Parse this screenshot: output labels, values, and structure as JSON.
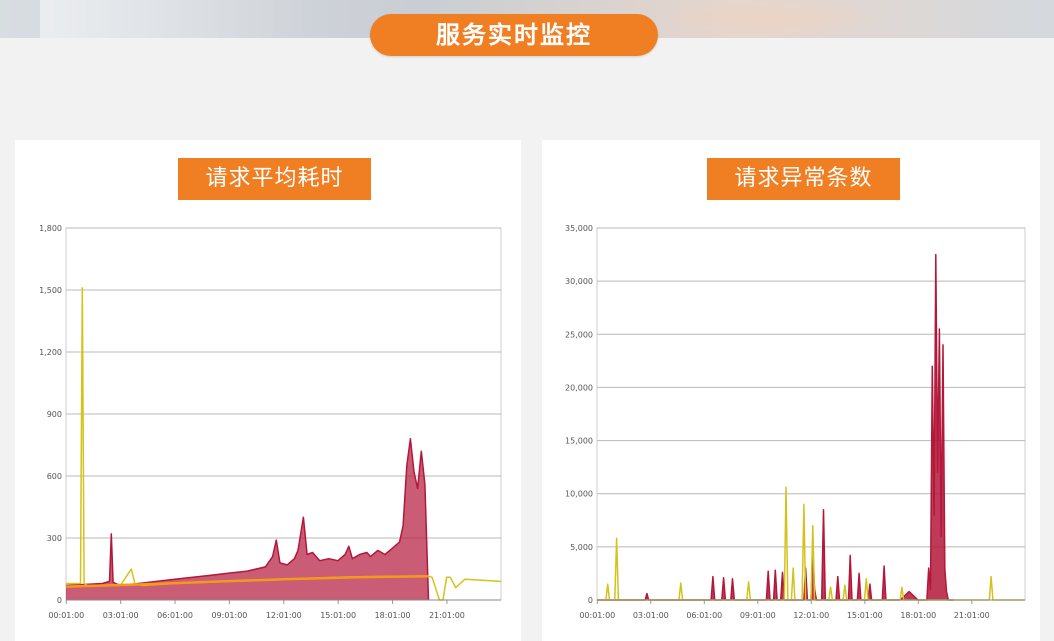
{
  "header": {
    "title": "服务实时监控"
  },
  "colors": {
    "accent": "#f07e22",
    "series_main": "#b3173a",
    "series_secondary": "#d4c21b",
    "trend": "#f39a1c"
  },
  "chart_data": [
    {
      "type": "area",
      "title": "请求平均耗时",
      "xlabel": "",
      "ylabel": "",
      "ylim": [
        0,
        1800
      ],
      "yticks": [
        "0",
        "300",
        "600",
        "900",
        "1,200",
        "1,500",
        "1,800"
      ],
      "xticks": [
        "00:01:00",
        "03:01:00",
        "06:01:00",
        "09:01:00",
        "12:01:00",
        "15:01:00",
        "18:01:00",
        "21:01:00"
      ],
      "xlim_hours": [
        0,
        24
      ],
      "grid": true,
      "series": [
        {
          "color": "#b3173a",
          "x": [
            0,
            1,
            2,
            2.4,
            2.5,
            2.6,
            3,
            4,
            5,
            6,
            7,
            8,
            9,
            10,
            11,
            11.4,
            11.6,
            11.8,
            12.2,
            12.6,
            12.8,
            13.1,
            13.3,
            13.6,
            14,
            14.5,
            15,
            15.4,
            15.6,
            15.8,
            16.2,
            16.6,
            16.8,
            17.2,
            17.6,
            18,
            18.4,
            18.6,
            18.8,
            19,
            19.2,
            19.4,
            19.6,
            19.8,
            20
          ],
          "values": [
            70,
            75,
            80,
            90,
            320,
            85,
            70,
            80,
            90,
            100,
            110,
            120,
            130,
            140,
            160,
            210,
            290,
            180,
            170,
            200,
            240,
            400,
            220,
            230,
            190,
            200,
            190,
            220,
            260,
            200,
            220,
            230,
            210,
            240,
            220,
            250,
            280,
            360,
            650,
            780,
            620,
            540,
            720,
            560,
            0
          ]
        },
        {
          "color": "#d4c21b",
          "x": [
            0,
            0.8,
            0.9,
            1.0,
            1.2,
            3,
            3.6,
            3.8,
            4.2,
            6,
            9,
            12,
            15,
            18,
            20,
            20.2,
            20.6,
            20.8,
            21.0,
            21.2,
            21.5,
            22,
            24
          ],
          "values": [
            80,
            80,
            1510,
            80,
            70,
            70,
            150,
            80,
            70,
            80,
            90,
            100,
            110,
            115,
            115,
            110,
            0,
            0,
            110,
            110,
            60,
            100,
            90
          ]
        },
        {
          "color": "#f39a1c",
          "x": [
            0,
            4,
            8,
            12,
            16,
            20
          ],
          "values": [
            65,
            75,
            88,
            100,
            110,
            115
          ]
        }
      ]
    },
    {
      "type": "area",
      "title": "请求异常条数",
      "xlabel": "",
      "ylabel": "",
      "ylim": [
        0,
        35000
      ],
      "yticks": [
        "0",
        "5,000",
        "10,000",
        "15,000",
        "20,000",
        "25,000",
        "30,000",
        "35,000"
      ],
      "xticks": [
        "00:01:00",
        "03:01:00",
        "06:01:00",
        "09:01:00",
        "12:01:00",
        "15:01:00",
        "18:01:00",
        "21:01:00"
      ],
      "xlim_hours": [
        0,
        24
      ],
      "grid": true,
      "series": [
        {
          "color": "#b3173a",
          "x": [
            0,
            2.7,
            2.8,
            2.9,
            6.4,
            6.5,
            6.6,
            7.0,
            7.1,
            7.2,
            7.5,
            7.6,
            7.7,
            9.5,
            9.6,
            9.7,
            9.9,
            10.0,
            10.1,
            10.3,
            10.4,
            10.5,
            11.6,
            11.7,
            11.8,
            12.0,
            12.1,
            12.2,
            12.3,
            12.6,
            12.7,
            12.8,
            13.0,
            13.4,
            13.5,
            13.6,
            14.1,
            14.2,
            14.3,
            14.6,
            14.7,
            14.8,
            15.2,
            15.3,
            15.4,
            16.0,
            16.1,
            16.2,
            17.0,
            17.5,
            18.0,
            18.5,
            18.6,
            18.7,
            18.8,
            18.9,
            19.0,
            19.1,
            19.2,
            19.3,
            19.4,
            19.5,
            19.6,
            19.7,
            20.0
          ],
          "values": [
            0,
            0,
            600,
            0,
            0,
            2200,
            0,
            0,
            2100,
            0,
            0,
            2000,
            0,
            0,
            2700,
            0,
            0,
            2800,
            0,
            0,
            2600,
            0,
            0,
            3000,
            0,
            0,
            4500,
            1000,
            0,
            0,
            8500,
            0,
            0,
            0,
            2200,
            0,
            0,
            4200,
            0,
            0,
            2500,
            0,
            0,
            1500,
            0,
            0,
            3200,
            0,
            0,
            800,
            0,
            0,
            3000,
            1000,
            22000,
            8000,
            32500,
            12000,
            25500,
            6000,
            24000,
            3000,
            800,
            0,
            0
          ]
        },
        {
          "color": "#d4c21b",
          "x": [
            0,
            0.5,
            0.6,
            0.7,
            1.0,
            1.1,
            1.2,
            4.6,
            4.7,
            4.8,
            8.4,
            8.5,
            8.6,
            10.5,
            10.6,
            10.7,
            10.9,
            11.0,
            11.1,
            11.5,
            11.6,
            11.7,
            12.0,
            12.1,
            12.2,
            13.0,
            13.1,
            13.2,
            13.8,
            13.9,
            14.0,
            15.0,
            15.1,
            15.2,
            17.0,
            17.1,
            17.2,
            22.0,
            22.1,
            22.2,
            24
          ],
          "values": [
            0,
            0,
            1500,
            0,
            0,
            5800,
            0,
            0,
            1600,
            0,
            0,
            1700,
            0,
            0,
            10600,
            0,
            0,
            3000,
            0,
            0,
            9000,
            0,
            0,
            7000,
            0,
            0,
            1200,
            0,
            0,
            1400,
            0,
            0,
            2000,
            0,
            0,
            1200,
            0,
            0,
            2200,
            0,
            0
          ]
        }
      ]
    }
  ]
}
